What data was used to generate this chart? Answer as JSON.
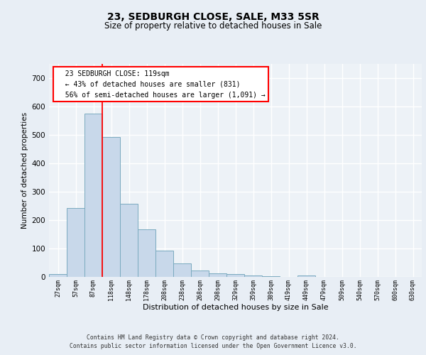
{
  "title1": "23, SEDBURGH CLOSE, SALE, M33 5SR",
  "title2": "Size of property relative to detached houses in Sale",
  "xlabel": "Distribution of detached houses by size in Sale",
  "ylabel": "Number of detached properties",
  "bar_values": [
    10,
    243,
    575,
    493,
    257,
    168,
    92,
    47,
    23,
    12,
    9,
    5,
    3,
    0,
    5,
    0,
    0,
    0,
    0,
    0,
    0
  ],
  "bar_labels": [
    "27sqm",
    "57sqm",
    "87sqm",
    "118sqm",
    "148sqm",
    "178sqm",
    "208sqm",
    "238sqm",
    "268sqm",
    "298sqm",
    "329sqm",
    "359sqm",
    "389sqm",
    "419sqm",
    "449sqm",
    "479sqm",
    "509sqm",
    "540sqm",
    "570sqm",
    "600sqm",
    "630sqm"
  ],
  "bar_color": "#c8d8ea",
  "bar_edge_color": "#7aaabf",
  "bar_edge_width": 0.7,
  "annotation_text": "  23 SEDBURGH CLOSE: 119sqm\n  ← 43% of detached houses are smaller (831)\n  56% of semi-detached houses are larger (1,091) →",
  "annotation_box_color": "white",
  "annotation_box_edge_color": "red",
  "vline_color": "red",
  "ylim": [
    0,
    750
  ],
  "yticks": [
    0,
    100,
    200,
    300,
    400,
    500,
    600,
    700
  ],
  "footer1": "Contains HM Land Registry data © Crown copyright and database right 2024.",
  "footer2": "Contains public sector information licensed under the Open Government Licence v3.0.",
  "bg_color": "#e8eef5",
  "plot_bg_color": "#edf2f7",
  "grid_color": "white",
  "title1_fontsize": 10,
  "title2_fontsize": 8.5,
  "ylabel_fontsize": 7.5,
  "xlabel_fontsize": 8,
  "ytick_fontsize": 7.5,
  "xtick_fontsize": 6,
  "annotation_fontsize": 7,
  "footer_fontsize": 5.8
}
